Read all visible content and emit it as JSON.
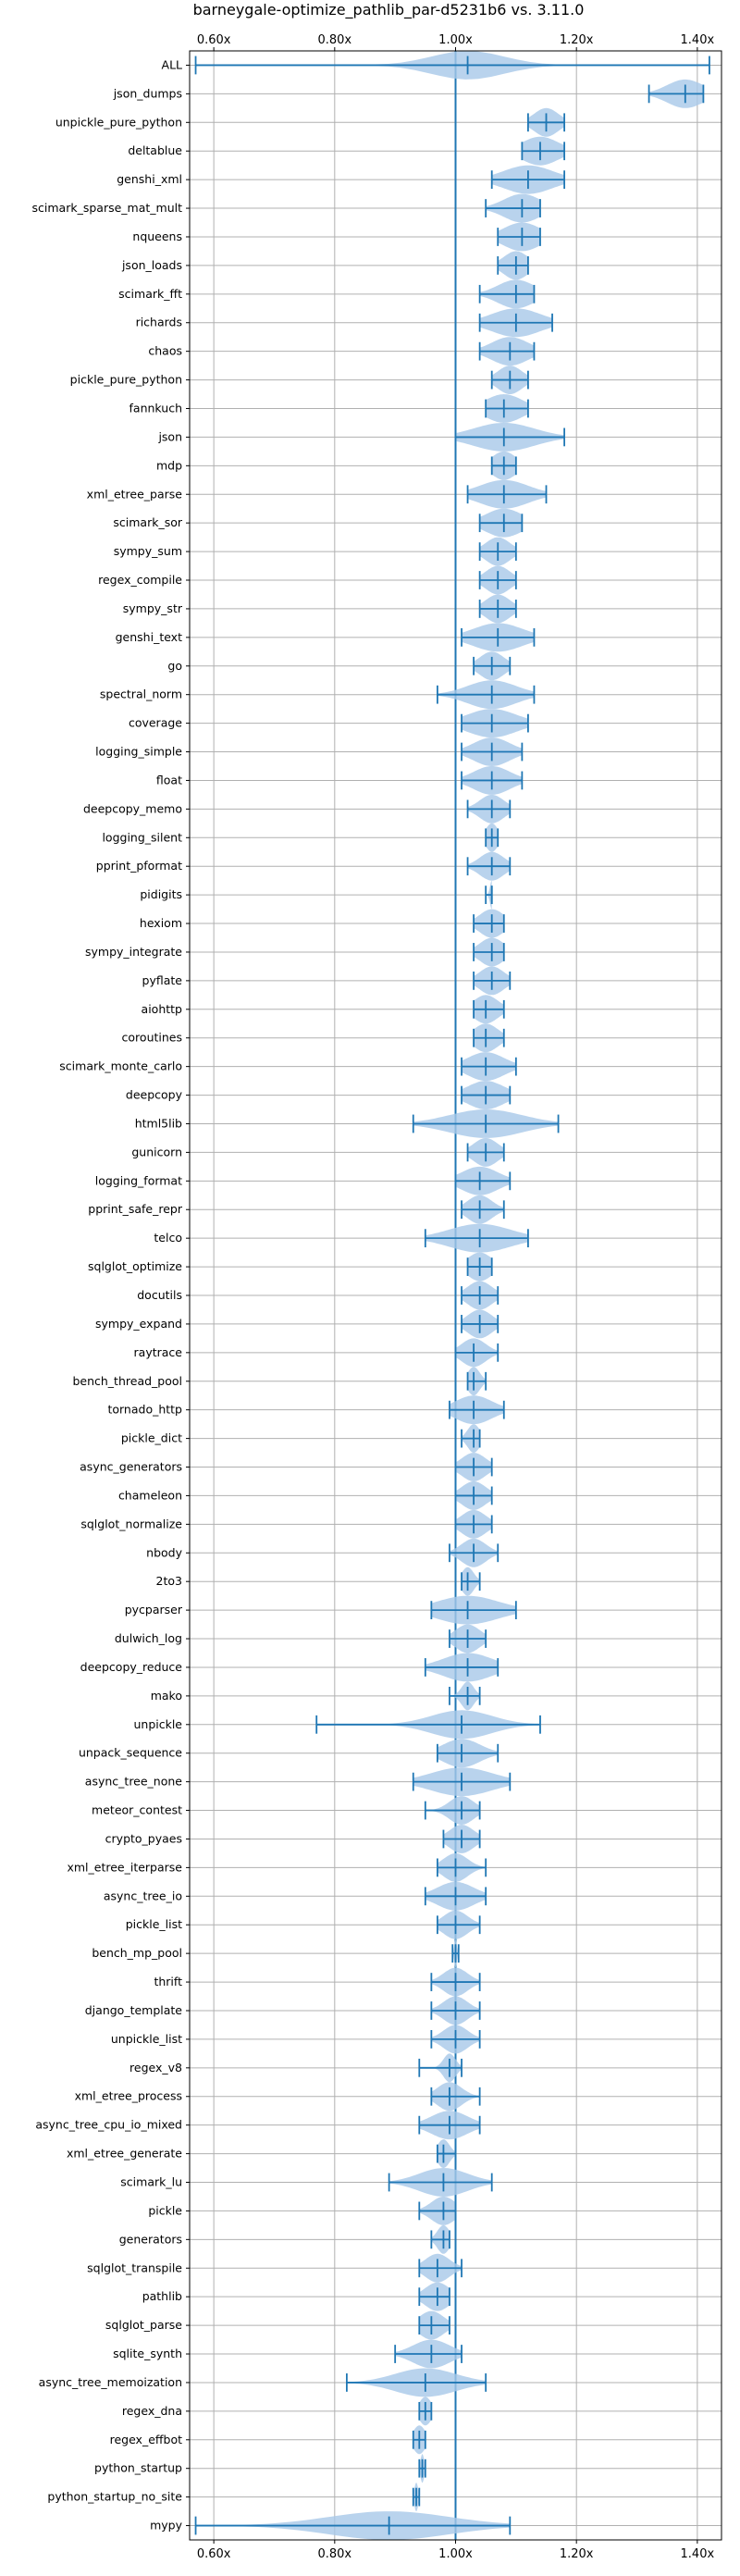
{
  "chart_data": {
    "type": "violin",
    "title": "barneygale-optimize_pathlib_par-d5231b6 vs. 3.11.0",
    "xlabel": "",
    "ylabel": "",
    "xlim": [
      0.56,
      1.44
    ],
    "xticks": [
      0.6,
      0.8,
      1.0,
      1.2,
      1.4
    ],
    "xtick_labels": [
      "0.60x",
      "0.80x",
      "1.00x",
      "1.20x",
      "1.40x"
    ],
    "reference_line": 1.0,
    "grid": true,
    "colors": {
      "accent": "#1f77b4",
      "violin": "#a8c8e8",
      "grid": "#b0b0b0"
    },
    "benchmarks": [
      {
        "name": "ALL",
        "min": 0.57,
        "max": 1.42,
        "mean": 1.02,
        "median": 1.02,
        "spread": 0.06
      },
      {
        "name": "json_dumps",
        "min": 1.32,
        "max": 1.41,
        "mean": 1.38,
        "median": 1.38,
        "spread": 0.03
      },
      {
        "name": "unpickle_pure_python",
        "min": 1.12,
        "max": 1.18,
        "mean": 1.15,
        "median": 1.15,
        "spread": 0.02
      },
      {
        "name": "deltablue",
        "min": 1.11,
        "max": 1.18,
        "mean": 1.14,
        "median": 1.14,
        "spread": 0.03
      },
      {
        "name": "genshi_xml",
        "min": 1.06,
        "max": 1.18,
        "mean": 1.12,
        "median": 1.12,
        "spread": 0.04
      },
      {
        "name": "scimark_sparse_mat_mult",
        "min": 1.05,
        "max": 1.14,
        "mean": 1.11,
        "median": 1.11,
        "spread": 0.03
      },
      {
        "name": "nqueens",
        "min": 1.07,
        "max": 1.14,
        "mean": 1.11,
        "median": 1.11,
        "spread": 0.03
      },
      {
        "name": "json_loads",
        "min": 1.07,
        "max": 1.12,
        "mean": 1.1,
        "median": 1.1,
        "spread": 0.02
      },
      {
        "name": "scimark_fft",
        "min": 1.04,
        "max": 1.13,
        "mean": 1.1,
        "median": 1.1,
        "spread": 0.03
      },
      {
        "name": "richards",
        "min": 1.04,
        "max": 1.16,
        "mean": 1.1,
        "median": 1.1,
        "spread": 0.04
      },
      {
        "name": "chaos",
        "min": 1.04,
        "max": 1.13,
        "mean": 1.09,
        "median": 1.09,
        "spread": 0.03
      },
      {
        "name": "pickle_pure_python",
        "min": 1.06,
        "max": 1.12,
        "mean": 1.09,
        "median": 1.09,
        "spread": 0.02
      },
      {
        "name": "fannkuch",
        "min": 1.05,
        "max": 1.12,
        "mean": 1.08,
        "median": 1.08,
        "spread": 0.03
      },
      {
        "name": "json",
        "min": 1.0,
        "max": 1.18,
        "mean": 1.08,
        "median": 1.08,
        "spread": 0.05
      },
      {
        "name": "mdp",
        "min": 1.06,
        "max": 1.1,
        "mean": 1.08,
        "median": 1.08,
        "spread": 0.02
      },
      {
        "name": "xml_etree_parse",
        "min": 1.02,
        "max": 1.15,
        "mean": 1.08,
        "median": 1.08,
        "spread": 0.04
      },
      {
        "name": "scimark_sor",
        "min": 1.04,
        "max": 1.11,
        "mean": 1.08,
        "median": 1.08,
        "spread": 0.03
      },
      {
        "name": "sympy_sum",
        "min": 1.04,
        "max": 1.1,
        "mean": 1.07,
        "median": 1.07,
        "spread": 0.02
      },
      {
        "name": "regex_compile",
        "min": 1.04,
        "max": 1.1,
        "mean": 1.07,
        "median": 1.07,
        "spread": 0.02
      },
      {
        "name": "sympy_str",
        "min": 1.04,
        "max": 1.1,
        "mean": 1.07,
        "median": 1.07,
        "spread": 0.02
      },
      {
        "name": "genshi_text",
        "min": 1.01,
        "max": 1.13,
        "mean": 1.07,
        "median": 1.07,
        "spread": 0.04
      },
      {
        "name": "go",
        "min": 1.03,
        "max": 1.09,
        "mean": 1.06,
        "median": 1.06,
        "spread": 0.02
      },
      {
        "name": "spectral_norm",
        "min": 0.97,
        "max": 1.13,
        "mean": 1.06,
        "median": 1.06,
        "spread": 0.04
      },
      {
        "name": "coverage",
        "min": 1.01,
        "max": 1.12,
        "mean": 1.06,
        "median": 1.06,
        "spread": 0.04
      },
      {
        "name": "logging_simple",
        "min": 1.01,
        "max": 1.11,
        "mean": 1.06,
        "median": 1.06,
        "spread": 0.03
      },
      {
        "name": "float",
        "min": 1.01,
        "max": 1.11,
        "mean": 1.06,
        "median": 1.06,
        "spread": 0.03
      },
      {
        "name": "deepcopy_memo",
        "min": 1.02,
        "max": 1.09,
        "mean": 1.06,
        "median": 1.06,
        "spread": 0.02
      },
      {
        "name": "logging_silent",
        "min": 1.05,
        "max": 1.07,
        "mean": 1.06,
        "median": 1.06,
        "spread": 0.01
      },
      {
        "name": "pprint_pformat",
        "min": 1.02,
        "max": 1.09,
        "mean": 1.06,
        "median": 1.06,
        "spread": 0.02
      },
      {
        "name": "pidigits",
        "min": 1.05,
        "max": 1.06,
        "mean": 1.06,
        "median": 1.06,
        "spread": 0.003
      },
      {
        "name": "hexiom",
        "min": 1.03,
        "max": 1.08,
        "mean": 1.06,
        "median": 1.06,
        "spread": 0.02
      },
      {
        "name": "sympy_integrate",
        "min": 1.03,
        "max": 1.08,
        "mean": 1.06,
        "median": 1.06,
        "spread": 0.02
      },
      {
        "name": "pyflate",
        "min": 1.03,
        "max": 1.09,
        "mean": 1.06,
        "median": 1.06,
        "spread": 0.02
      },
      {
        "name": "aiohttp",
        "min": 1.03,
        "max": 1.08,
        "mean": 1.05,
        "median": 1.05,
        "spread": 0.02
      },
      {
        "name": "coroutines",
        "min": 1.03,
        "max": 1.08,
        "mean": 1.05,
        "median": 1.05,
        "spread": 0.02
      },
      {
        "name": "scimark_monte_carlo",
        "min": 1.01,
        "max": 1.1,
        "mean": 1.05,
        "median": 1.05,
        "spread": 0.03
      },
      {
        "name": "deepcopy",
        "min": 1.01,
        "max": 1.09,
        "mean": 1.05,
        "median": 1.05,
        "spread": 0.03
      },
      {
        "name": "html5lib",
        "min": 0.93,
        "max": 1.17,
        "mean": 1.05,
        "median": 1.05,
        "spread": 0.06
      },
      {
        "name": "gunicorn",
        "min": 1.02,
        "max": 1.08,
        "mean": 1.05,
        "median": 1.05,
        "spread": 0.02
      },
      {
        "name": "logging_format",
        "min": 1.0,
        "max": 1.09,
        "mean": 1.04,
        "median": 1.04,
        "spread": 0.03
      },
      {
        "name": "pprint_safe_repr",
        "min": 1.01,
        "max": 1.08,
        "mean": 1.04,
        "median": 1.04,
        "spread": 0.02
      },
      {
        "name": "telco",
        "min": 0.95,
        "max": 1.12,
        "mean": 1.04,
        "median": 1.04,
        "spread": 0.05
      },
      {
        "name": "sqlglot_optimize",
        "min": 1.02,
        "max": 1.06,
        "mean": 1.04,
        "median": 1.04,
        "spread": 0.02
      },
      {
        "name": "docutils",
        "min": 1.01,
        "max": 1.07,
        "mean": 1.04,
        "median": 1.04,
        "spread": 0.02
      },
      {
        "name": "sympy_expand",
        "min": 1.01,
        "max": 1.07,
        "mean": 1.04,
        "median": 1.04,
        "spread": 0.02
      },
      {
        "name": "raytrace",
        "min": 1.0,
        "max": 1.07,
        "mean": 1.03,
        "median": 1.03,
        "spread": 0.02
      },
      {
        "name": "bench_thread_pool",
        "min": 1.02,
        "max": 1.05,
        "mean": 1.03,
        "median": 1.03,
        "spread": 0.01
      },
      {
        "name": "tornado_http",
        "min": 0.99,
        "max": 1.08,
        "mean": 1.03,
        "median": 1.03,
        "spread": 0.03
      },
      {
        "name": "pickle_dict",
        "min": 1.01,
        "max": 1.04,
        "mean": 1.03,
        "median": 1.03,
        "spread": 0.01
      },
      {
        "name": "async_generators",
        "min": 1.0,
        "max": 1.06,
        "mean": 1.03,
        "median": 1.03,
        "spread": 0.02
      },
      {
        "name": "chameleon",
        "min": 1.0,
        "max": 1.06,
        "mean": 1.03,
        "median": 1.03,
        "spread": 0.02
      },
      {
        "name": "sqlglot_normalize",
        "min": 1.0,
        "max": 1.06,
        "mean": 1.03,
        "median": 1.03,
        "spread": 0.02
      },
      {
        "name": "nbody",
        "min": 0.99,
        "max": 1.07,
        "mean": 1.03,
        "median": 1.03,
        "spread": 0.02
      },
      {
        "name": "2to3",
        "min": 1.01,
        "max": 1.04,
        "mean": 1.02,
        "median": 1.02,
        "spread": 0.01
      },
      {
        "name": "pycparser",
        "min": 0.96,
        "max": 1.1,
        "mean": 1.02,
        "median": 1.02,
        "spread": 0.05
      },
      {
        "name": "dulwich_log",
        "min": 0.99,
        "max": 1.05,
        "mean": 1.02,
        "median": 1.02,
        "spread": 0.02
      },
      {
        "name": "deepcopy_reduce",
        "min": 0.95,
        "max": 1.07,
        "mean": 1.02,
        "median": 1.02,
        "spread": 0.04
      },
      {
        "name": "mako",
        "min": 0.99,
        "max": 1.04,
        "mean": 1.02,
        "median": 1.02,
        "spread": 0.01
      },
      {
        "name": "unpickle",
        "min": 0.77,
        "max": 1.14,
        "mean": 1.01,
        "median": 1.01,
        "spread": 0.05
      },
      {
        "name": "unpack_sequence",
        "min": 0.97,
        "max": 1.07,
        "mean": 1.01,
        "median": 1.01,
        "spread": 0.03
      },
      {
        "name": "async_tree_none",
        "min": 0.93,
        "max": 1.09,
        "mean": 1.01,
        "median": 1.01,
        "spread": 0.05
      },
      {
        "name": "meteor_contest",
        "min": 0.95,
        "max": 1.04,
        "mean": 1.01,
        "median": 1.01,
        "spread": 0.02
      },
      {
        "name": "crypto_pyaes",
        "min": 0.98,
        "max": 1.04,
        "mean": 1.01,
        "median": 1.01,
        "spread": 0.02
      },
      {
        "name": "xml_etree_iterparse",
        "min": 0.97,
        "max": 1.05,
        "mean": 1.0,
        "median": 1.0,
        "spread": 0.02
      },
      {
        "name": "async_tree_io",
        "min": 0.95,
        "max": 1.05,
        "mean": 1.0,
        "median": 1.0,
        "spread": 0.03
      },
      {
        "name": "pickle_list",
        "min": 0.97,
        "max": 1.04,
        "mean": 1.0,
        "median": 1.0,
        "spread": 0.02
      },
      {
        "name": "bench_mp_pool",
        "min": 0.995,
        "max": 1.005,
        "mean": 1.0,
        "median": 1.0,
        "spread": 0.002
      },
      {
        "name": "thrift",
        "min": 0.96,
        "max": 1.04,
        "mean": 1.0,
        "median": 1.0,
        "spread": 0.02
      },
      {
        "name": "django_template",
        "min": 0.96,
        "max": 1.04,
        "mean": 1.0,
        "median": 1.0,
        "spread": 0.02
      },
      {
        "name": "unpickle_list",
        "min": 0.96,
        "max": 1.04,
        "mean": 1.0,
        "median": 1.0,
        "spread": 0.02
      },
      {
        "name": "regex_v8",
        "min": 0.94,
        "max": 1.01,
        "mean": 0.99,
        "median": 0.99,
        "spread": 0.01
      },
      {
        "name": "xml_etree_process",
        "min": 0.96,
        "max": 1.04,
        "mean": 0.99,
        "median": 0.99,
        "spread": 0.02
      },
      {
        "name": "async_tree_cpu_io_mixed",
        "min": 0.94,
        "max": 1.04,
        "mean": 0.99,
        "median": 0.99,
        "spread": 0.03
      },
      {
        "name": "xml_etree_generate",
        "min": 0.97,
        "max": 1.0,
        "mean": 0.98,
        "median": 0.98,
        "spread": 0.01
      },
      {
        "name": "scimark_lu",
        "min": 0.89,
        "max": 1.06,
        "mean": 0.98,
        "median": 0.98,
        "spread": 0.04
      },
      {
        "name": "pickle",
        "min": 0.94,
        "max": 1.0,
        "mean": 0.98,
        "median": 0.98,
        "spread": 0.02
      },
      {
        "name": "generators",
        "min": 0.96,
        "max": 0.99,
        "mean": 0.98,
        "median": 0.98,
        "spread": 0.01
      },
      {
        "name": "sqlglot_transpile",
        "min": 0.94,
        "max": 1.01,
        "mean": 0.97,
        "median": 0.97,
        "spread": 0.02
      },
      {
        "name": "pathlib",
        "min": 0.94,
        "max": 0.99,
        "mean": 0.97,
        "median": 0.97,
        "spread": 0.02
      },
      {
        "name": "sqlglot_parse",
        "min": 0.94,
        "max": 0.99,
        "mean": 0.96,
        "median": 0.96,
        "spread": 0.02
      },
      {
        "name": "sqlite_synth",
        "min": 0.9,
        "max": 1.01,
        "mean": 0.96,
        "median": 0.96,
        "spread": 0.03
      },
      {
        "name": "async_tree_memoization",
        "min": 0.82,
        "max": 1.05,
        "mean": 0.95,
        "median": 0.95,
        "spread": 0.05
      },
      {
        "name": "regex_dna",
        "min": 0.94,
        "max": 0.96,
        "mean": 0.95,
        "median": 0.95,
        "spread": 0.01
      },
      {
        "name": "regex_effbot",
        "min": 0.93,
        "max": 0.95,
        "mean": 0.94,
        "median": 0.94,
        "spread": 0.01
      },
      {
        "name": "python_startup",
        "min": 0.94,
        "max": 0.95,
        "mean": 0.945,
        "median": 0.945,
        "spread": 0.003
      },
      {
        "name": "python_startup_no_site",
        "min": 0.93,
        "max": 0.94,
        "mean": 0.935,
        "median": 0.935,
        "spread": 0.003
      },
      {
        "name": "mypy",
        "min": 0.57,
        "max": 1.09,
        "mean": 0.89,
        "median": 0.89,
        "spread": 0.1
      }
    ]
  }
}
